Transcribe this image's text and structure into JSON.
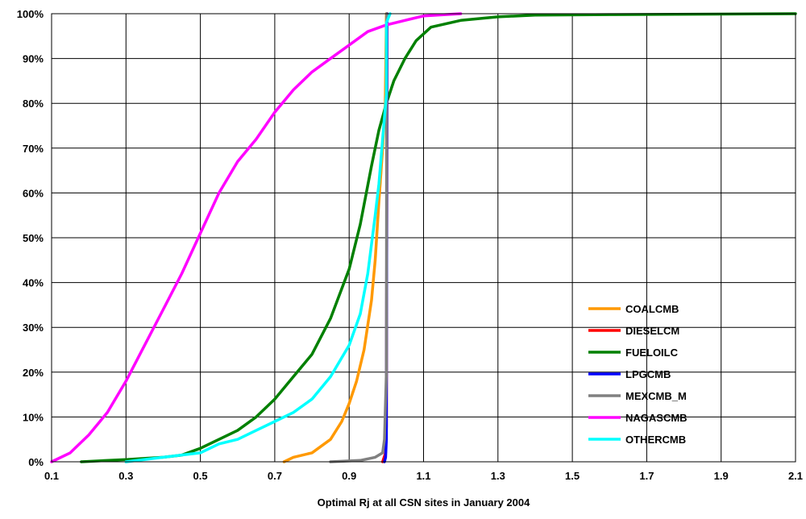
{
  "chart_data": {
    "type": "line",
    "xlabel": "Optimal Rj at all CSN sites in January 2004",
    "ylabel": "",
    "xlim": [
      0.1,
      2.1
    ],
    "ylim": [
      0,
      100
    ],
    "x_ticks": [
      "0.1",
      "0.3",
      "0.5",
      "0.7",
      "0.9",
      "1.1",
      "1.3",
      "1.5",
      "1.7",
      "1.9",
      "2.1"
    ],
    "y_ticks": [
      "0%",
      "10%",
      "20%",
      "30%",
      "40%",
      "50%",
      "60%",
      "70%",
      "80%",
      "90%",
      "100%"
    ],
    "grid": true,
    "legend_position": "bottom-right",
    "series": [
      {
        "name": "COALCMB",
        "color": "#ff9900",
        "points": [
          [
            0.725,
            0
          ],
          [
            0.75,
            1
          ],
          [
            0.8,
            2
          ],
          [
            0.85,
            5
          ],
          [
            0.88,
            9
          ],
          [
            0.9,
            13
          ],
          [
            0.92,
            18
          ],
          [
            0.94,
            25
          ],
          [
            0.96,
            36
          ],
          [
            0.97,
            45
          ],
          [
            0.98,
            58
          ],
          [
            0.99,
            70
          ],
          [
            0.997,
            80
          ],
          [
            1.0,
            100
          ]
        ]
      },
      {
        "name": "DIESELCM",
        "color": "#ff0000",
        "points": [
          [
            0.99,
            0
          ],
          [
            0.998,
            2
          ],
          [
            1.0,
            8
          ],
          [
            1.002,
            100
          ]
        ]
      },
      {
        "name": "FUELOILC",
        "color": "#008000",
        "points": [
          [
            0.18,
            0
          ],
          [
            0.3,
            0.5
          ],
          [
            0.4,
            1
          ],
          [
            0.45,
            1.5
          ],
          [
            0.5,
            3
          ],
          [
            0.55,
            5
          ],
          [
            0.6,
            7
          ],
          [
            0.65,
            10
          ],
          [
            0.7,
            14
          ],
          [
            0.75,
            19
          ],
          [
            0.8,
            24
          ],
          [
            0.85,
            32
          ],
          [
            0.9,
            43
          ],
          [
            0.93,
            53
          ],
          [
            0.96,
            66
          ],
          [
            0.98,
            74
          ],
          [
            1.0,
            80
          ],
          [
            1.02,
            85
          ],
          [
            1.05,
            90
          ],
          [
            1.08,
            94
          ],
          [
            1.12,
            97
          ],
          [
            1.2,
            98.5
          ],
          [
            1.3,
            99.3
          ],
          [
            1.4,
            99.7
          ],
          [
            1.6,
            99.8
          ],
          [
            2.1,
            100
          ]
        ]
      },
      {
        "name": "LPGCMB",
        "color": "#0000ff",
        "points": [
          [
            0.995,
            0
          ],
          [
            0.998,
            1
          ],
          [
            1.0,
            5
          ],
          [
            1.0,
            11
          ],
          [
            1.002,
            100
          ]
        ]
      },
      {
        "name": "MEXCMB_M",
        "color": "#808080",
        "points": [
          [
            0.85,
            0
          ],
          [
            0.93,
            0.3
          ],
          [
            0.97,
            1
          ],
          [
            0.99,
            2
          ],
          [
            0.995,
            5
          ],
          [
            1.0,
            20
          ],
          [
            1.001,
            100
          ]
        ]
      },
      {
        "name": "NAGASCMB",
        "color": "#ff00ff",
        "points": [
          [
            0.1,
            0
          ],
          [
            0.15,
            2
          ],
          [
            0.2,
            6
          ],
          [
            0.25,
            11
          ],
          [
            0.3,
            18
          ],
          [
            0.35,
            26
          ],
          [
            0.4,
            34
          ],
          [
            0.45,
            42
          ],
          [
            0.5,
            51
          ],
          [
            0.55,
            60
          ],
          [
            0.6,
            67
          ],
          [
            0.65,
            72
          ],
          [
            0.7,
            78
          ],
          [
            0.75,
            83
          ],
          [
            0.8,
            87
          ],
          [
            0.85,
            90
          ],
          [
            0.9,
            93
          ],
          [
            0.95,
            96
          ],
          [
            1.0,
            97.5
          ],
          [
            1.05,
            98.5
          ],
          [
            1.1,
            99.5
          ],
          [
            1.2,
            100
          ]
        ]
      },
      {
        "name": "OTHERCMB",
        "color": "#00ffff",
        "points": [
          [
            0.3,
            0
          ],
          [
            0.4,
            1
          ],
          [
            0.5,
            2
          ],
          [
            0.55,
            4
          ],
          [
            0.6,
            5
          ],
          [
            0.65,
            7
          ],
          [
            0.7,
            9
          ],
          [
            0.75,
            11
          ],
          [
            0.8,
            14
          ],
          [
            0.85,
            19
          ],
          [
            0.9,
            26
          ],
          [
            0.93,
            33
          ],
          [
            0.95,
            42
          ],
          [
            0.97,
            55
          ],
          [
            0.98,
            62
          ],
          [
            0.99,
            72
          ],
          [
            1.0,
            82
          ],
          [
            1.0,
            98
          ],
          [
            1.01,
            100
          ]
        ]
      }
    ]
  }
}
